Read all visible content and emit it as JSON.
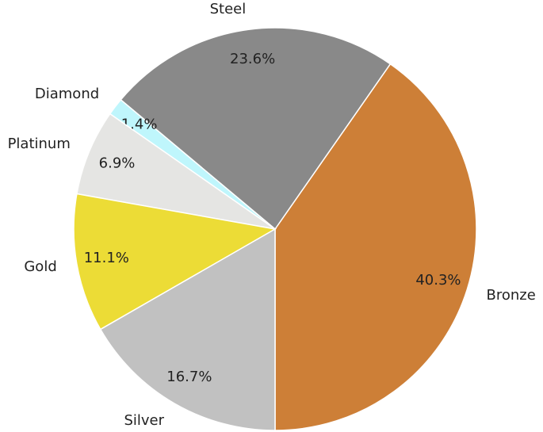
{
  "chart_data": {
    "type": "pie",
    "categories": [
      "Bronze",
      "Steel",
      "Diamond",
      "Platinum",
      "Gold",
      "Silver"
    ],
    "values": [
      40.3,
      23.6,
      1.4,
      6.9,
      11.1,
      16.7
    ],
    "value_labels": [
      "40.3%",
      "23.6%",
      "1.4%",
      "6.9%",
      "11.1%",
      "16.7%"
    ],
    "colors": [
      "#cd7f37",
      "#898989",
      "#bff6fc",
      "#e5e5e3",
      "#ecdc36",
      "#c1c1c1"
    ]
  }
}
